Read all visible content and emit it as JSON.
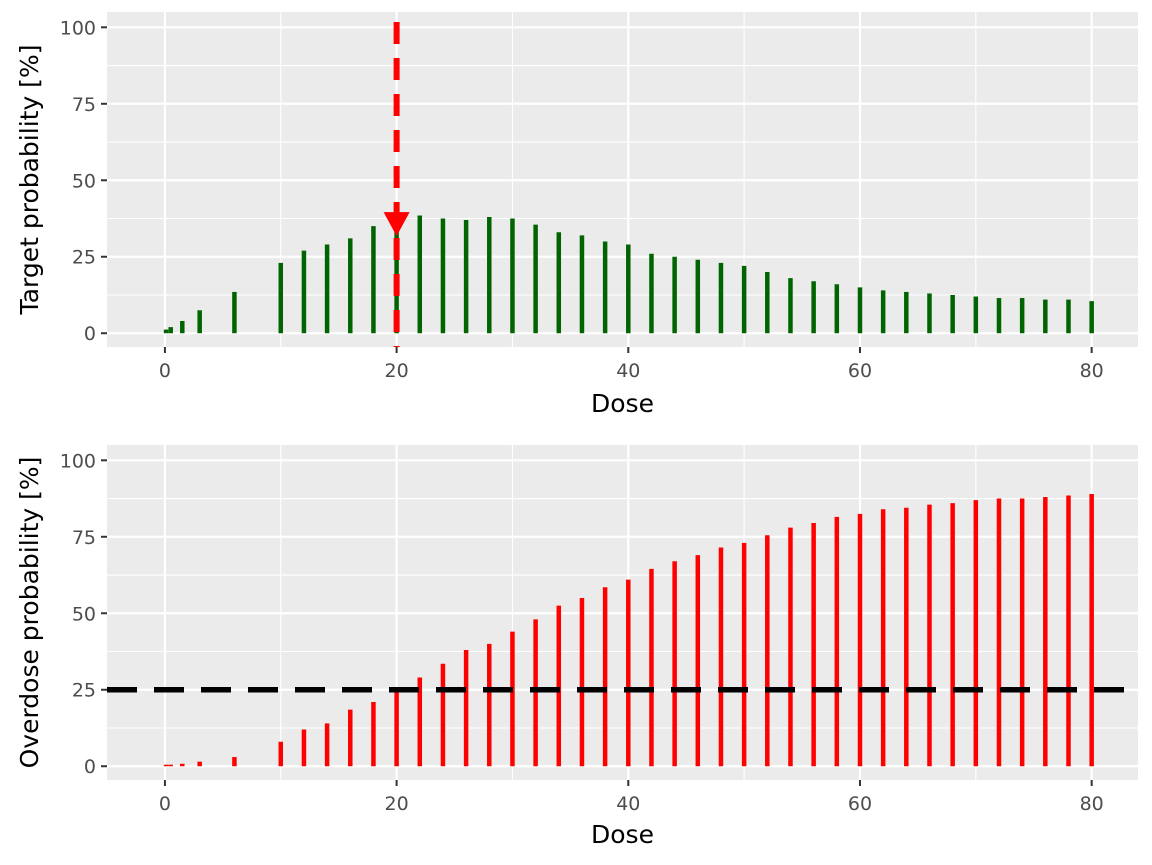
{
  "chart_data": [
    {
      "type": "bar",
      "title": "",
      "xlabel": "Dose",
      "ylabel": "Target probability [%]",
      "xlim": [
        -5,
        84
      ],
      "ylim": [
        -4.5,
        105
      ],
      "x_ticks": [
        "0",
        "20",
        "40",
        "60",
        "80"
      ],
      "y_ticks": [
        "0",
        "25",
        "50",
        "75",
        "100"
      ],
      "bar_color": "#006400",
      "series": [
        {
          "x": [
            0.1,
            0.5,
            1.5,
            3,
            6,
            10,
            12,
            14,
            16,
            18,
            20,
            22,
            24,
            26,
            28,
            30,
            32,
            34,
            36,
            38,
            40,
            42,
            44,
            46,
            48,
            50,
            52,
            54,
            56,
            58,
            60,
            62,
            64,
            66,
            68,
            70,
            72,
            74,
            76,
            78,
            80
          ],
          "values": [
            1.2,
            2,
            4,
            7.5,
            13.5,
            23,
            27,
            29,
            31,
            35,
            35,
            38.5,
            37.5,
            37,
            38,
            37.5,
            35.5,
            33,
            32,
            30,
            29,
            26,
            25,
            24,
            23,
            22,
            20,
            18,
            17,
            16,
            15,
            14,
            13.5,
            13,
            12.5,
            12,
            11.5,
            11.5,
            11,
            11,
            10.5
          ]
        }
      ],
      "annotations": [
        {
          "type": "vline",
          "x": 20,
          "color": "#ff0000",
          "style": "dashed"
        },
        {
          "type": "point",
          "shape": "down-triangle",
          "x": 20,
          "y": 35,
          "color": "#ff0000"
        }
      ],
      "grid": true
    },
    {
      "type": "bar",
      "title": "",
      "xlabel": "Dose",
      "ylabel": "Overdose probability [%]",
      "xlim": [
        -5,
        84
      ],
      "ylim": [
        -4.5,
        105
      ],
      "x_ticks": [
        "0",
        "20",
        "40",
        "60",
        "80"
      ],
      "y_ticks": [
        "0",
        "25",
        "50",
        "75",
        "100"
      ],
      "bar_color": "#ff0000",
      "series": [
        {
          "x": [
            0.1,
            0.5,
            1.5,
            3,
            6,
            10,
            12,
            14,
            16,
            18,
            20,
            22,
            24,
            26,
            28,
            30,
            32,
            34,
            36,
            38,
            40,
            42,
            44,
            46,
            48,
            50,
            52,
            54,
            56,
            58,
            60,
            62,
            64,
            66,
            68,
            70,
            72,
            74,
            76,
            78,
            80
          ],
          "values": [
            0.5,
            0.5,
            0.8,
            1.5,
            3,
            8,
            12,
            14,
            18.5,
            21,
            25.5,
            29,
            33.5,
            38,
            40,
            44,
            48,
            52.5,
            55,
            58.5,
            61,
            64.5,
            67,
            69,
            71.5,
            73,
            75.5,
            78,
            79.5,
            81.5,
            82.5,
            84,
            84.5,
            85.5,
            86,
            87,
            87.5,
            87.5,
            88,
            88.5,
            89
          ]
        }
      ],
      "annotations": [
        {
          "type": "hline",
          "y": 25,
          "color": "#000000",
          "style": "dashed"
        }
      ],
      "grid": true
    }
  ]
}
